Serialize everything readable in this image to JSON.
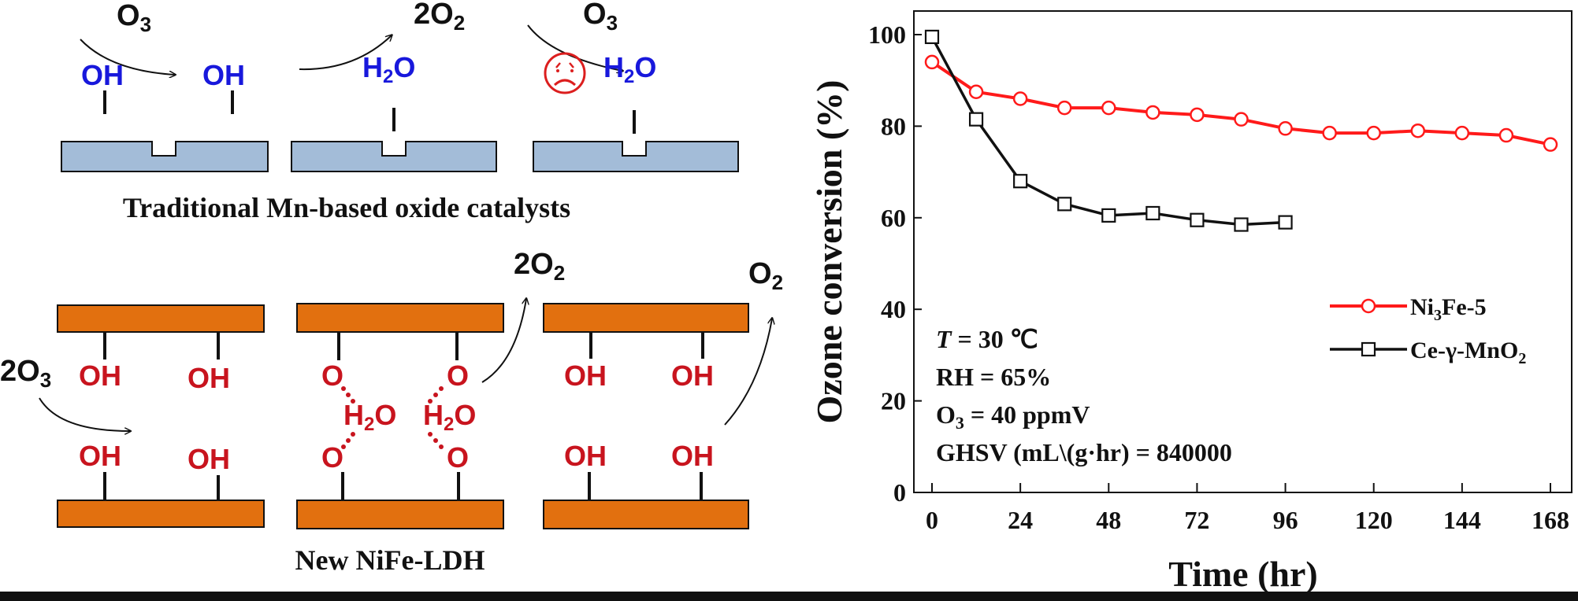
{
  "colors": {
    "blue_slab": "#a3bcd8",
    "orange_slab": "#e2700f",
    "hydroxyl_blue": "#1818dc",
    "hydroxyl_red": "#c8141e",
    "sad_face": "#dc1e1e",
    "ni3fe_series": "#ff1a1a",
    "ce_series": "#111111"
  },
  "diagram": {
    "top": {
      "molecules": [
        "O",
        "2O",
        "O"
      ],
      "molecule_subs": [
        "3",
        "2",
        "3"
      ],
      "hydroxyl": "OH",
      "water_main": "H",
      "water_sub": "2",
      "water_tail": "O",
      "sad_face_icon": "sad-face-icon",
      "caption": "Traditional Mn-based oxide catalysts"
    },
    "bottom": {
      "left_in": "2O",
      "left_in_sub": "3",
      "mid_out": "2O",
      "mid_out_sub": "2",
      "right_out": "O",
      "right_out_sub": "2",
      "hydroxyl": "OH",
      "oxygen": "O",
      "water_main": "H",
      "water_sub": "2",
      "water_tail": "O",
      "caption": "New NiFe-LDH"
    }
  },
  "chart_data": {
    "type": "line",
    "title": "",
    "xlabel": "Time (hr)",
    "ylabel": "Ozone conversion (%)",
    "xlim": [
      0,
      168
    ],
    "ylim": [
      0,
      100
    ],
    "xticks": [
      0,
      24,
      48,
      72,
      96,
      120,
      144,
      168
    ],
    "yticks": [
      0,
      20,
      40,
      60,
      80,
      100
    ],
    "legend_position": "middle-right",
    "series": [
      {
        "name": "Ni3Fe-5",
        "name_main": "Ni",
        "name_sub": "3",
        "name_tail": "Fe-5",
        "marker": "circle",
        "x": [
          0,
          12,
          24,
          36,
          48,
          60,
          72,
          84,
          96,
          108,
          120,
          132,
          144,
          156,
          168
        ],
        "y": [
          94,
          87.5,
          86,
          84,
          84,
          83,
          82.5,
          81.5,
          79.5,
          78.5,
          78.5,
          79,
          78.5,
          78,
          76
        ]
      },
      {
        "name": "Ce-γ-MnO2",
        "name_main": "Ce-γ-MnO",
        "name_sub": "2",
        "name_tail": "",
        "marker": "square",
        "x": [
          0,
          12,
          24,
          36,
          48,
          60,
          72,
          84,
          96
        ],
        "y": [
          99.5,
          81.5,
          68,
          63,
          60.5,
          61,
          59.5,
          58.5,
          59
        ]
      }
    ],
    "annotations": {
      "t_label": "T",
      "t_value": " = 30 ℃",
      "rh": "RH = 65%",
      "o3_main": "O",
      "o3_sub": "3",
      "o3_tail": " = 40 ppmV",
      "ghsv": "GHSV (mL\\(g·hr) = 840000"
    }
  }
}
